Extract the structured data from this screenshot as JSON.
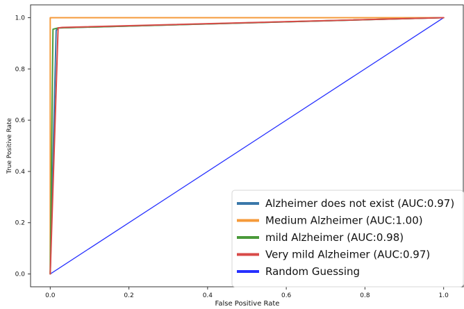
{
  "chart_data": {
    "type": "line",
    "title": "",
    "xlabel": "False Positive Rate",
    "ylabel": "True Positive Rate",
    "xlim": [
      -0.05,
      1.05
    ],
    "ylim": [
      -0.05,
      1.05
    ],
    "x_ticks": [
      "0.0",
      "0.2",
      "0.4",
      "0.6",
      "0.8",
      "1.0"
    ],
    "y_ticks": [
      "0.0",
      "0.2",
      "0.4",
      "0.6",
      "0.8",
      "1.0"
    ],
    "grid": false,
    "legend_position": "bottom-right",
    "series": [
      {
        "name": "Alzheimer does not exist (AUC:0.97)",
        "color": "#3a78aa",
        "x": [
          0.0,
          0.015,
          0.02,
          1.0
        ],
        "y": [
          0.0,
          0.95,
          0.96,
          1.0
        ]
      },
      {
        "name": "Medium Alzheimer (AUC:1.00)",
        "color": "#f59a3a",
        "x": [
          0.0,
          0.0,
          1.0
        ],
        "y": [
          0.0,
          1.0,
          1.0
        ]
      },
      {
        "name": "mild Alzheimer (AUC:0.98)",
        "color": "#4a9a3a",
        "x": [
          0.0,
          0.007,
          0.02,
          1.0
        ],
        "y": [
          0.0,
          0.955,
          0.96,
          1.0
        ]
      },
      {
        "name": "Very mild Alzheimer (AUC:0.97)",
        "color": "#d84a48",
        "x": [
          0.0,
          0.02,
          0.03,
          1.0
        ],
        "y": [
          0.0,
          0.96,
          0.962,
          1.0
        ]
      },
      {
        "name": "Random Guessing",
        "color": "#2630ff",
        "x": [
          0.0,
          1.0
        ],
        "y": [
          0.0,
          1.0
        ]
      }
    ]
  }
}
